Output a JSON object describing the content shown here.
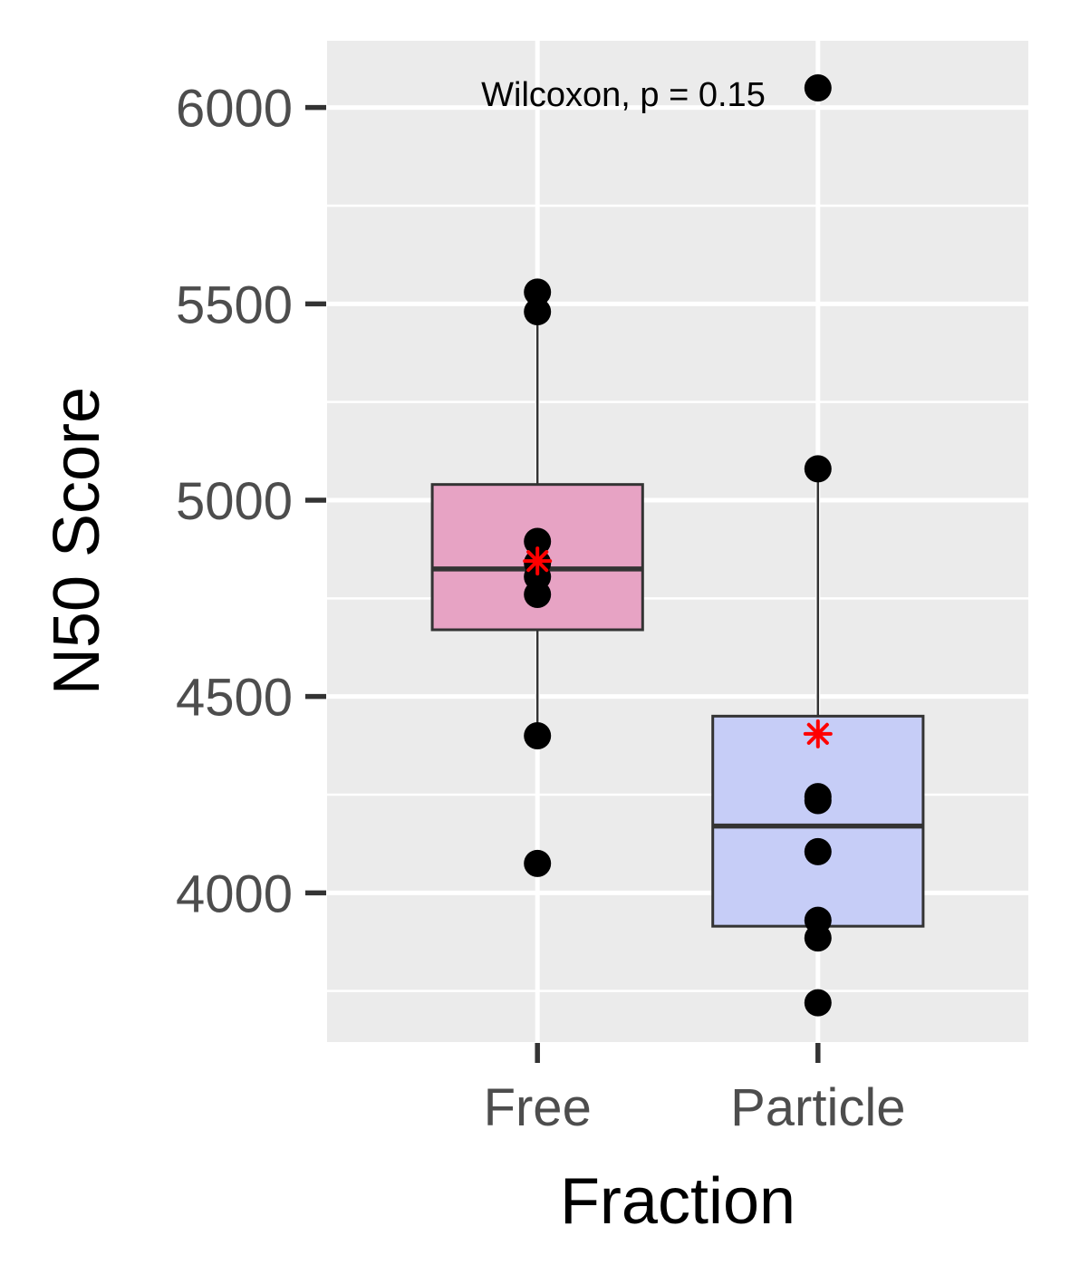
{
  "chart_data": {
    "type": "box",
    "xlabel": "Fraction",
    "ylabel": "N50 Score",
    "categories": [
      "Free",
      "Particle"
    ],
    "y_ticks": [
      4000,
      4500,
      5000,
      5500,
      6000
    ],
    "y_tick_labels": [
      "4000",
      "4500",
      "5000",
      "5500",
      "6000"
    ],
    "ylim": [
      3620,
      6170
    ],
    "grid": true,
    "annotation": "Wilcoxon, p = 0.15",
    "colors": {
      "panel_bg": "#ebebeb",
      "grid": "#ffffff",
      "box_outline": "#333333",
      "point": "#000000",
      "mean_marker": "#ff0000"
    },
    "series": [
      {
        "category": "Free",
        "fill": "#e7a3c4",
        "q1": 4670,
        "median": 4825,
        "q3": 5040,
        "whisker_low": 4400,
        "whisker_high": 5480,
        "mean": 4845,
        "points": [
          5530,
          5480,
          4895,
          4840,
          4805,
          4760,
          4400,
          4075
        ]
      },
      {
        "category": "Particle",
        "fill": "#c6cdf7",
        "q1": 3915,
        "median": 4170,
        "q3": 4450,
        "whisker_low": 3885,
        "whisker_high": 5080,
        "mean": 4405,
        "points": [
          6050,
          5080,
          4245,
          4235,
          4105,
          3930,
          3885,
          3720
        ]
      }
    ]
  }
}
